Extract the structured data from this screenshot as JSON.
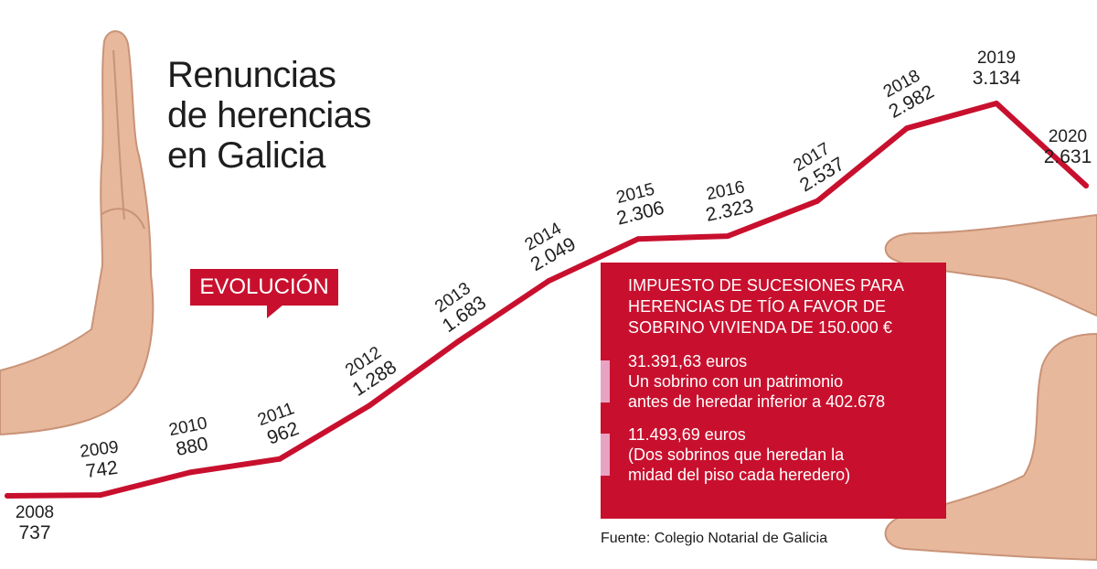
{
  "title_lines": [
    "Renuncias",
    "de herencias",
    "en Galicia"
  ],
  "tag": "EVOLUCIÓN",
  "chart_data": {
    "type": "line",
    "title": "Renuncias de herencias en Galicia",
    "categories": [
      "2008",
      "2009",
      "2010",
      "2011",
      "2012",
      "2013",
      "2014",
      "2015",
      "2016",
      "2017",
      "2018",
      "2019",
      "2020"
    ],
    "values": [
      737,
      742,
      880,
      962,
      1288,
      1683,
      2049,
      2306,
      2323,
      2537,
      2982,
      3134,
      2631
    ],
    "value_labels": [
      "737",
      "742",
      "880",
      "962",
      "1.288",
      "1.683",
      "2.049",
      "2.306",
      "2.323",
      "2.537",
      "2.982",
      "3.134",
      "2.631"
    ],
    "line_color": "#c8102e"
  },
  "info_box": {
    "heading_lines": [
      "IMPUESTO DE SUCESIONES PARA",
      "HERENCIAS DE TÍO A FAVOR DE",
      "SOBRINO  VIVIENDA DE 150.000 €"
    ],
    "items": [
      {
        "lines": [
          "31.391,63 euros",
          "Un sobrino con un patrimonio",
          "antes de heredar inferior a 402.678"
        ]
      },
      {
        "lines": [
          "11.493,69 euros",
          "(Dos sobrinos que heredan la",
          "midad del piso cada heredero)"
        ]
      }
    ],
    "background": "#c8102e",
    "marker_color": "#e8a3c4"
  },
  "source": "Fuente: Colegio Notarial de Galicia"
}
